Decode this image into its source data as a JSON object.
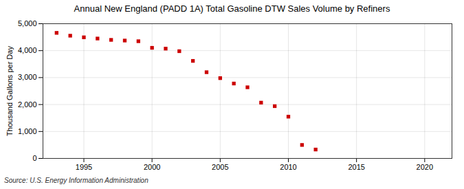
{
  "chart_data": {
    "type": "scatter",
    "title": "Annual New England (PADD 1A) Total Gasoline DTW Sales Volume by Refiners",
    "ylabel": "Thousand Gallons per Day",
    "source": "Source: U.S. Energy Information Administration",
    "x": [
      1993,
      1994,
      1995,
      1996,
      1997,
      1998,
      1999,
      2000,
      2001,
      2002,
      2003,
      2004,
      2005,
      2006,
      2007,
      2008,
      2009,
      2010,
      2011,
      2012
    ],
    "values": [
      4660,
      4555,
      4495,
      4450,
      4400,
      4375,
      4350,
      4105,
      4075,
      3980,
      3620,
      3200,
      2980,
      2780,
      2640,
      2070,
      1940,
      1550,
      500,
      330
    ],
    "color": "#cc0000",
    "marker": "square",
    "xlim": [
      1992,
      2022
    ],
    "ylim": [
      0,
      5000
    ],
    "xticks": [
      1995,
      2000,
      2005,
      2010,
      2015,
      2020
    ],
    "yticks": [
      0,
      {
        "value": 1000,
        "label": "1,000"
      },
      {
        "value": 2000,
        "label": "2,000"
      },
      {
        "value": 3000,
        "label": "3,000"
      },
      {
        "value": 4000,
        "label": "4,000"
      },
      {
        "value": 5000,
        "label": "5,000"
      }
    ],
    "grid": true
  }
}
